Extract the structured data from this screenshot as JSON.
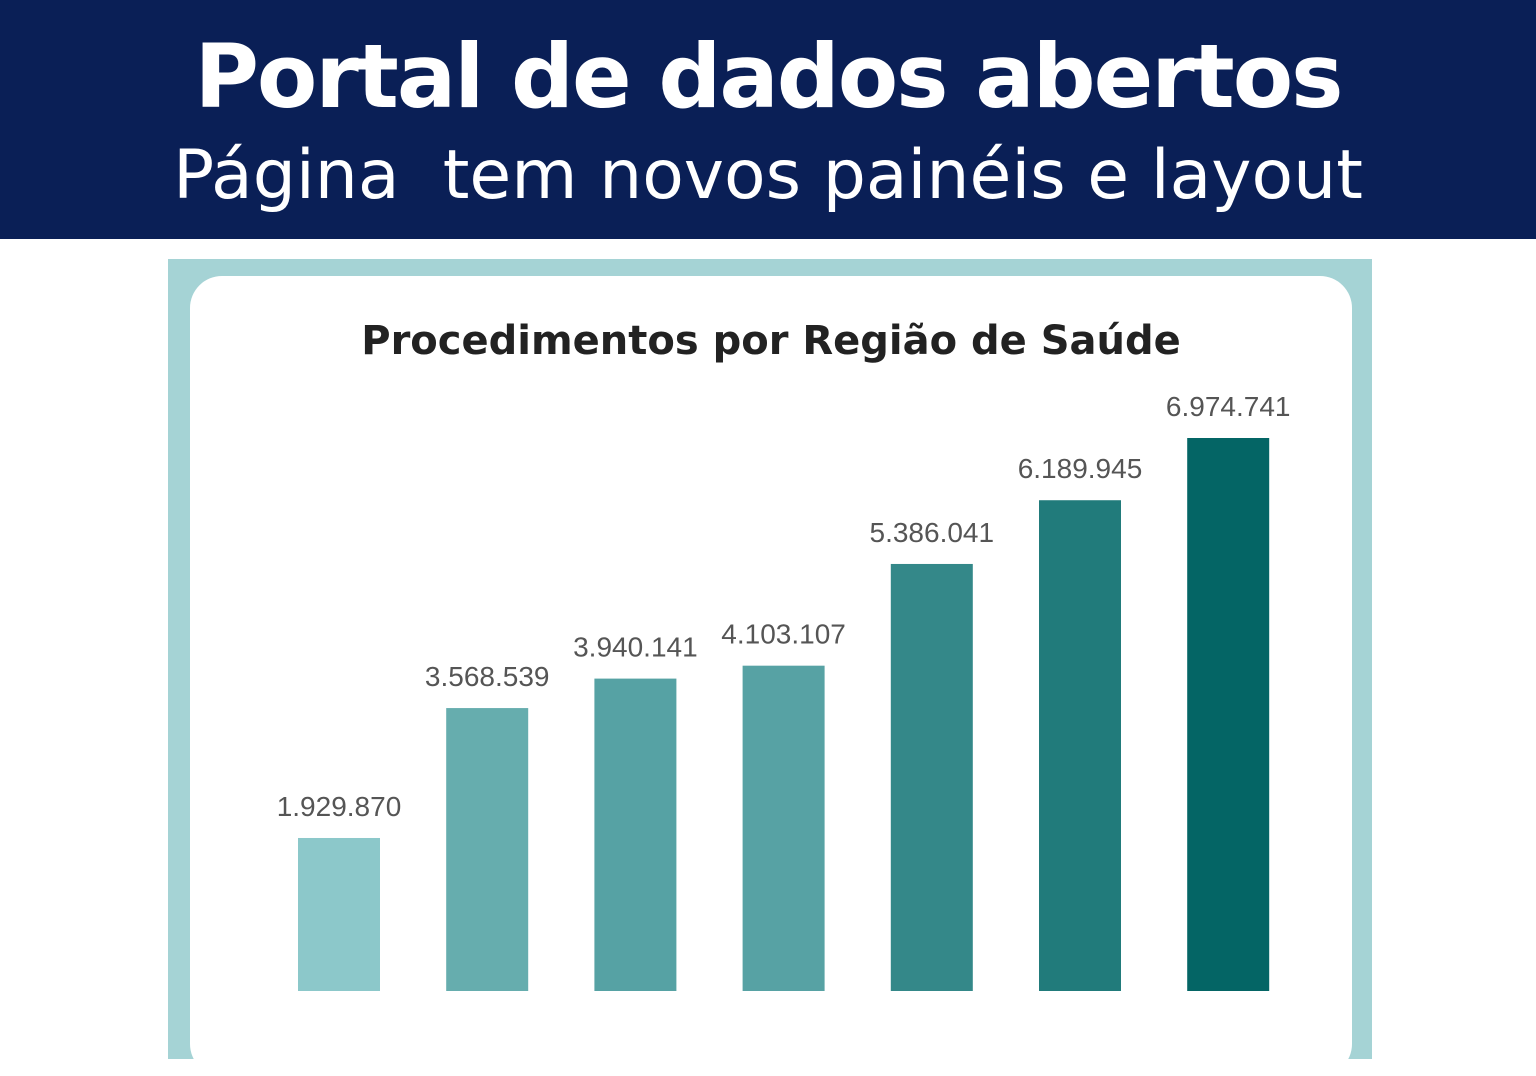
{
  "header": {
    "title": "Portal de dados abertos",
    "subtitle": "Página  tem novos painéis e layout",
    "background_color": "#0a1f56"
  },
  "chart_data": {
    "type": "bar",
    "title": "Procedimentos por Região de Saúde",
    "xlabel": "",
    "ylabel": "",
    "ylim": [
      0,
      7500000
    ],
    "grid": false,
    "values": [
      1929870,
      3568539,
      3940141,
      4103107,
      5386041,
      6189945,
      6974741
    ],
    "labels": [
      "1.929.870",
      "3.568.539",
      "3.940.141",
      "4.103.107",
      "5.386.041",
      "6.189.945",
      "6.974.741"
    ],
    "colors": [
      "#8cc8ca",
      "#66adae",
      "#56a2a4",
      "#57a2a4",
      "#348889",
      "#217b7b",
      "#046565"
    ],
    "frame_color": "#a5d3d5"
  }
}
